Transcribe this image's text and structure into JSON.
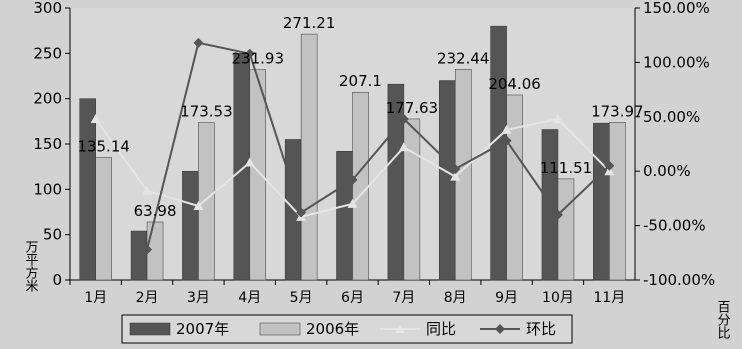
{
  "chart_data": {
    "type": "bar",
    "categories": [
      "1月",
      "2月",
      "3月",
      "4月",
      "5月",
      "6月",
      "7月",
      "8月",
      "9月",
      "10月",
      "11月"
    ],
    "series": [
      {
        "name": "2007年",
        "type": "bar",
        "axis": "left",
        "color": "#555555",
        "values": [
          200,
          54,
          120,
          250,
          155,
          142,
          216,
          220,
          280,
          166,
          173
        ]
      },
      {
        "name": "2006年",
        "type": "bar",
        "axis": "left",
        "color": "#c2c2c2",
        "values": [
          135.14,
          63.98,
          173.53,
          231.93,
          271.21,
          207.1,
          177.63,
          232.44,
          204.06,
          111.51,
          173.97
        ]
      },
      {
        "name": "同比",
        "type": "line",
        "axis": "right",
        "color": "#e4e4e4",
        "marker": "triangle",
        "values": [
          48,
          -18,
          -32,
          8,
          -42,
          -30,
          22,
          -5,
          38,
          48,
          0
        ]
      },
      {
        "name": "环比",
        "type": "line",
        "axis": "right",
        "color": "#555555",
        "marker": "diamond",
        "values": [
          null,
          -72,
          118,
          108,
          -38,
          -8,
          48,
          2,
          28,
          -40,
          5
        ]
      }
    ],
    "data_labels": [
      {
        "category": "1月",
        "text": "135.14"
      },
      {
        "category": "2月",
        "text": "63.98"
      },
      {
        "category": "3月",
        "text": "173.53"
      },
      {
        "category": "4月",
        "text": "231.93"
      },
      {
        "category": "5月",
        "text": "271.21"
      },
      {
        "category": "6月",
        "text": "207.1"
      },
      {
        "category": "7月",
        "text": "177.63"
      },
      {
        "category": "8月",
        "text": "232.44"
      },
      {
        "category": "9月",
        "text": "204.06"
      },
      {
        "category": "10月",
        "text": "111.51"
      },
      {
        "category": "11月",
        "text": "173.97"
      }
    ],
    "ylim": [
      0,
      300
    ],
    "yticks": [
      "0",
      "50",
      "100",
      "150",
      "200",
      "250",
      "300"
    ],
    "y2lim": [
      -100,
      150
    ],
    "y2ticks": [
      "-100.00%",
      "-50.00%",
      "0.00%",
      "50.00%",
      "100.00%",
      "150.00%"
    ],
    "ylabel": "万平方米",
    "y2label": "百分比",
    "grid": false,
    "legend_position": "bottom"
  }
}
